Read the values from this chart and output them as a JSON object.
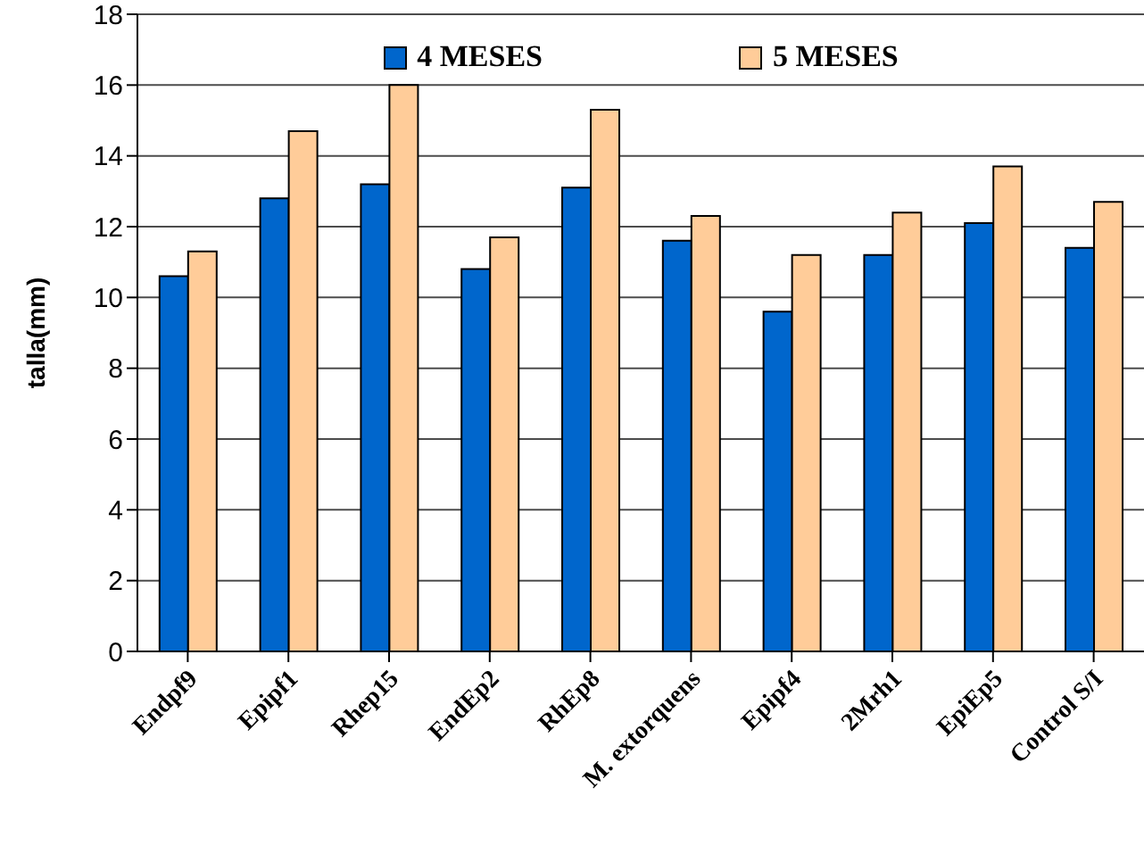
{
  "chart_data": {
    "type": "bar",
    "ylabel": "talla(mm)",
    "categories": [
      "Endpf9",
      "Epipf1",
      "Rhep15",
      "EndEp2",
      "RhEp8",
      "M. extorquens",
      "Epipf4",
      "2Mrh1",
      "EpiEp5",
      "Control S/I"
    ],
    "series": [
      {
        "name": "4 MESES",
        "color": "#0066cc",
        "values": [
          10.6,
          12.8,
          13.2,
          10.8,
          13.1,
          11.6,
          9.6,
          11.2,
          12.1,
          11.4
        ]
      },
      {
        "name": "5 MESES",
        "color": "#ffcc99",
        "values": [
          11.3,
          14.7,
          16.0,
          11.7,
          15.3,
          12.3,
          11.2,
          12.4,
          13.7,
          12.7
        ]
      }
    ],
    "ylim": [
      0,
      18
    ],
    "yticks": [
      0,
      2,
      4,
      6,
      8,
      10,
      12,
      14,
      16,
      18
    ],
    "grid": "y",
    "legend": "top"
  }
}
